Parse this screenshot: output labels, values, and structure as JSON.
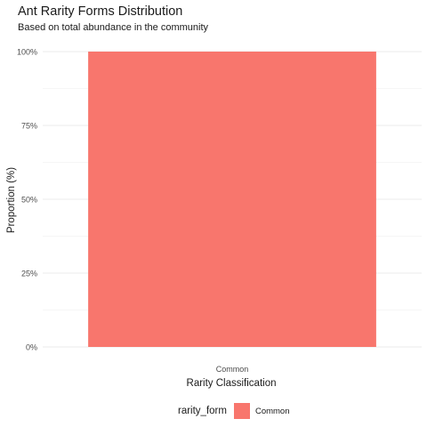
{
  "chart_data": {
    "type": "bar",
    "title": "Ant Rarity Forms Distribution",
    "subtitle": "Based on total abundance in the community",
    "xlabel": "Rarity Classification",
    "ylabel": "Proportion (%)",
    "categories": [
      "Common"
    ],
    "series": [
      {
        "name": "Common",
        "values": [
          100
        ],
        "color": "#F8766D"
      }
    ],
    "ylim": [
      0,
      100
    ],
    "y_ticks": [
      0,
      25,
      50,
      75,
      100
    ],
    "y_tick_labels": [
      "0%",
      "25%",
      "50%",
      "75%",
      "100%"
    ],
    "grid": true,
    "legend": {
      "title": "rarity_form",
      "position": "bottom",
      "entries": [
        "Common"
      ]
    }
  }
}
